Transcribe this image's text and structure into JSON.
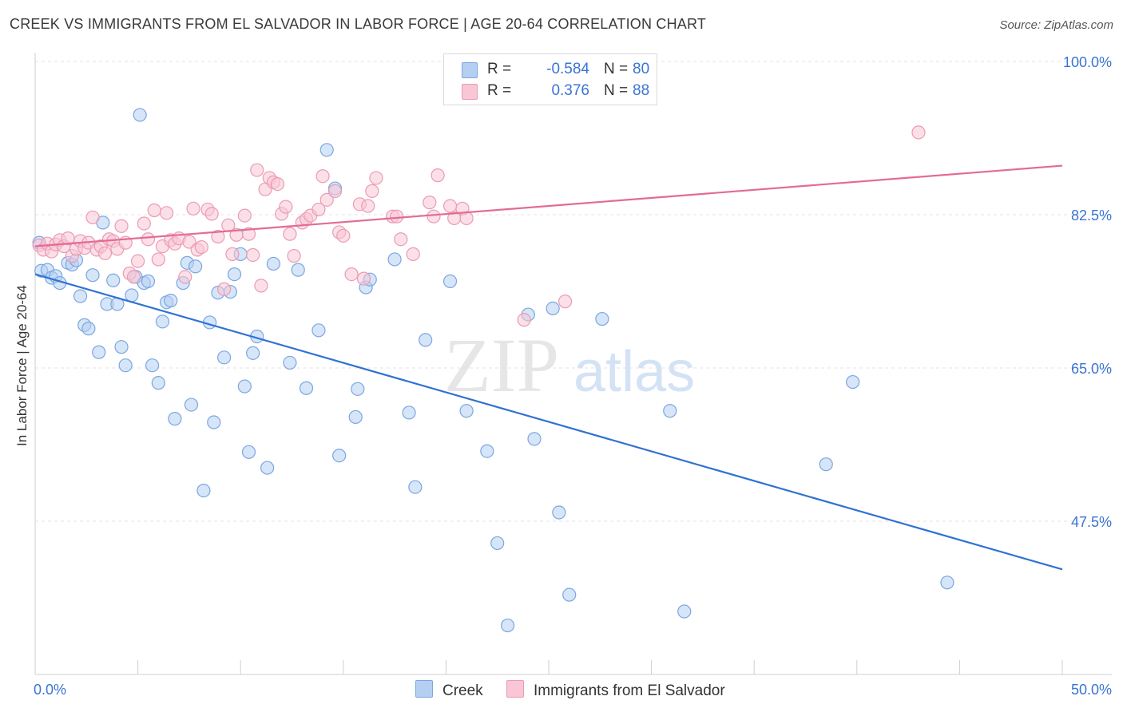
{
  "header": {
    "title": "CREEK VS IMMIGRANTS FROM EL SALVADOR IN LABOR FORCE | AGE 20-64 CORRELATION CHART",
    "source": "Source: ZipAtlas.com"
  },
  "legend_box": {
    "rows": [
      {
        "r_label": "R =",
        "r_value": "-0.584",
        "n_label": "N =",
        "n_value": "80"
      },
      {
        "r_label": "R =",
        "r_value": "0.376",
        "n_label": "N =",
        "n_value": "88"
      }
    ]
  },
  "watermark": {
    "zip": "ZIP",
    "atlas": "atlas"
  },
  "colors": {
    "creek_fill": "#b5cff2",
    "creek_stroke": "#7aa7e0",
    "creek_line": "#2f72d3",
    "salv_fill": "#f8c6d5",
    "salv_stroke": "#ec9ab4",
    "salv_line": "#e36b95",
    "value_text": "#3a74d4",
    "grid": "#e3e3e3"
  },
  "chart_data": {
    "type": "scatter",
    "title": "CREEK VS IMMIGRANTS FROM EL SALVADOR IN LABOR FORCE | AGE 20-64 CORRELATION CHART",
    "xlabel": "",
    "ylabel": "In Labor Force | Age 20-64",
    "xlim": [
      0,
      50
    ],
    "ylim": [
      30,
      100
    ],
    "x_tick_labels": [
      "0.0%",
      "50.0%"
    ],
    "y_ticks": [
      47.5,
      65.0,
      82.5,
      100.0
    ],
    "y_tick_labels": [
      "47.5%",
      "65.0%",
      "82.5%",
      "100.0%"
    ],
    "grid": true,
    "legend_position": "bottom",
    "series": [
      {
        "name": "Creek",
        "r": -0.584,
        "n": 80,
        "trend": {
          "x": [
            0,
            50
          ],
          "y": [
            75.7,
            42.0
          ]
        },
        "points": [
          [
            0.3,
            76.1
          ],
          [
            0.6,
            76.2
          ],
          [
            0.8,
            75.3
          ],
          [
            1.0,
            75.5
          ],
          [
            1.2,
            74.7
          ],
          [
            1.6,
            77.0
          ],
          [
            1.8,
            76.8
          ],
          [
            2.0,
            77.3
          ],
          [
            2.2,
            73.2
          ],
          [
            2.4,
            69.9
          ],
          [
            2.6,
            69.5
          ],
          [
            2.8,
            75.6
          ],
          [
            3.1,
            66.8
          ],
          [
            3.3,
            81.6
          ],
          [
            3.5,
            72.3
          ],
          [
            3.8,
            75.0
          ],
          [
            4.0,
            72.3
          ],
          [
            4.2,
            67.4
          ],
          [
            4.4,
            65.3
          ],
          [
            4.7,
            73.3
          ],
          [
            4.9,
            75.4
          ],
          [
            5.1,
            93.9
          ],
          [
            5.3,
            74.7
          ],
          [
            5.5,
            74.9
          ],
          [
            5.7,
            65.3
          ],
          [
            6.0,
            63.3
          ],
          [
            6.2,
            70.3
          ],
          [
            6.4,
            72.5
          ],
          [
            6.6,
            72.7
          ],
          [
            6.8,
            59.2
          ],
          [
            7.2,
            74.7
          ],
          [
            7.4,
            77.0
          ],
          [
            7.6,
            60.8
          ],
          [
            7.8,
            76.6
          ],
          [
            8.2,
            51.0
          ],
          [
            8.5,
            70.2
          ],
          [
            8.7,
            58.8
          ],
          [
            8.9,
            73.6
          ],
          [
            9.2,
            66.2
          ],
          [
            9.5,
            73.7
          ],
          [
            9.7,
            75.7
          ],
          [
            10.0,
            78.0
          ],
          [
            10.2,
            62.9
          ],
          [
            10.4,
            55.4
          ],
          [
            10.6,
            66.7
          ],
          [
            10.8,
            68.6
          ],
          [
            11.3,
            53.6
          ],
          [
            11.6,
            76.9
          ],
          [
            12.4,
            65.6
          ],
          [
            12.8,
            76.2
          ],
          [
            13.2,
            62.7
          ],
          [
            13.8,
            69.3
          ],
          [
            14.2,
            89.9
          ],
          [
            14.6,
            85.5
          ],
          [
            14.8,
            55.0
          ],
          [
            15.7,
            62.6
          ],
          [
            15.6,
            59.4
          ],
          [
            16.1,
            74.2
          ],
          [
            16.3,
            75.1
          ],
          [
            17.5,
            77.4
          ],
          [
            18.2,
            59.9
          ],
          [
            18.5,
            51.4
          ],
          [
            19.0,
            68.2
          ],
          [
            20.2,
            74.9
          ],
          [
            21.0,
            60.1
          ],
          [
            22.0,
            55.5
          ],
          [
            22.5,
            45.0
          ],
          [
            23.0,
            35.6
          ],
          [
            24.0,
            71.1
          ],
          [
            24.3,
            56.9
          ],
          [
            25.2,
            71.8
          ],
          [
            25.5,
            48.5
          ],
          [
            26.0,
            39.1
          ],
          [
            27.6,
            70.6
          ],
          [
            30.9,
            60.1
          ],
          [
            31.6,
            37.2
          ],
          [
            38.5,
            54.0
          ],
          [
            39.8,
            63.4
          ],
          [
            44.4,
            40.5
          ],
          [
            0.2,
            79.3
          ]
        ]
      },
      {
        "name": "Immigrants from El Salvador",
        "r": 0.376,
        "n": 88,
        "trend": {
          "x": [
            0,
            50
          ],
          "y": [
            78.9,
            88.1
          ]
        },
        "points": [
          [
            0.2,
            79.0
          ],
          [
            0.4,
            78.5
          ],
          [
            0.6,
            79.2
          ],
          [
            0.8,
            78.3
          ],
          [
            1.0,
            79.1
          ],
          [
            1.2,
            79.6
          ],
          [
            1.4,
            78.9
          ],
          [
            1.6,
            79.8
          ],
          [
            1.8,
            77.8
          ],
          [
            2.0,
            78.6
          ],
          [
            2.2,
            79.5
          ],
          [
            2.4,
            78.7
          ],
          [
            2.6,
            79.3
          ],
          [
            2.8,
            82.2
          ],
          [
            3.0,
            78.5
          ],
          [
            3.2,
            78.9
          ],
          [
            3.4,
            78.1
          ],
          [
            3.6,
            79.7
          ],
          [
            3.8,
            79.5
          ],
          [
            4.0,
            78.6
          ],
          [
            4.2,
            81.2
          ],
          [
            4.4,
            79.3
          ],
          [
            4.6,
            75.8
          ],
          [
            4.8,
            75.4
          ],
          [
            5.0,
            77.2
          ],
          [
            5.3,
            81.5
          ],
          [
            5.5,
            79.7
          ],
          [
            5.8,
            83.0
          ],
          [
            6.0,
            77.4
          ],
          [
            6.2,
            78.9
          ],
          [
            6.4,
            82.7
          ],
          [
            6.6,
            79.6
          ],
          [
            6.8,
            79.2
          ],
          [
            7.0,
            79.8
          ],
          [
            7.3,
            75.4
          ],
          [
            7.5,
            79.4
          ],
          [
            7.7,
            83.2
          ],
          [
            7.9,
            78.5
          ],
          [
            8.1,
            78.8
          ],
          [
            8.4,
            83.1
          ],
          [
            8.6,
            82.6
          ],
          [
            8.9,
            80.0
          ],
          [
            9.2,
            74.0
          ],
          [
            9.4,
            81.3
          ],
          [
            9.6,
            78.0
          ],
          [
            9.8,
            80.2
          ],
          [
            10.2,
            82.4
          ],
          [
            10.4,
            80.3
          ],
          [
            10.6,
            77.9
          ],
          [
            10.8,
            87.6
          ],
          [
            11.0,
            74.4
          ],
          [
            11.2,
            85.4
          ],
          [
            11.4,
            86.7
          ],
          [
            11.6,
            86.2
          ],
          [
            11.8,
            86.0
          ],
          [
            12.0,
            82.6
          ],
          [
            12.2,
            83.4
          ],
          [
            12.4,
            80.3
          ],
          [
            12.6,
            77.8
          ],
          [
            13.0,
            81.6
          ],
          [
            13.2,
            82.0
          ],
          [
            13.4,
            82.4
          ],
          [
            13.8,
            83.1
          ],
          [
            14.0,
            86.9
          ],
          [
            14.2,
            84.2
          ],
          [
            14.6,
            85.2
          ],
          [
            14.8,
            80.5
          ],
          [
            15.0,
            80.1
          ],
          [
            15.4,
            75.7
          ],
          [
            15.8,
            83.7
          ],
          [
            16.0,
            75.2
          ],
          [
            16.2,
            83.5
          ],
          [
            16.4,
            85.2
          ],
          [
            16.6,
            86.7
          ],
          [
            17.4,
            82.3
          ],
          [
            17.6,
            82.3
          ],
          [
            17.8,
            79.7
          ],
          [
            18.4,
            78.0
          ],
          [
            19.2,
            83.9
          ],
          [
            19.4,
            82.3
          ],
          [
            19.6,
            87.0
          ],
          [
            20.2,
            83.5
          ],
          [
            20.4,
            82.1
          ],
          [
            20.8,
            83.2
          ],
          [
            21.0,
            82.1
          ],
          [
            23.8,
            70.5
          ],
          [
            25.8,
            72.6
          ],
          [
            43.0,
            91.9
          ]
        ]
      }
    ]
  },
  "bottom_legend": {
    "items": [
      {
        "label": "Creek"
      },
      {
        "label": "Immigrants from El Salvador"
      }
    ]
  }
}
